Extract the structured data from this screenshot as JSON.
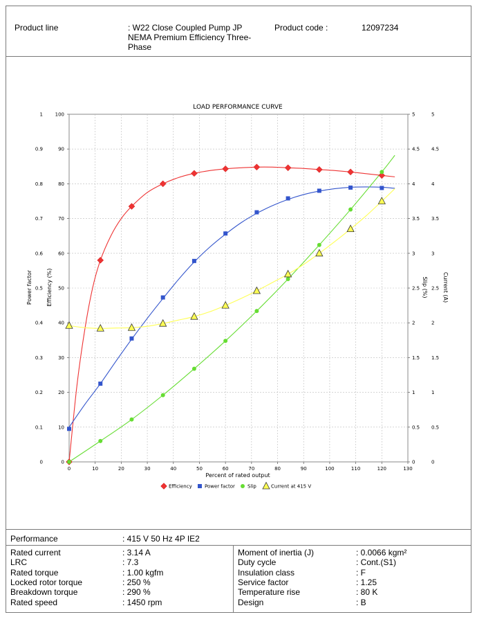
{
  "header": {
    "product_line_label": "Product line",
    "product_line_value": ": W22 Close Coupled Pump JP NEMA Premium Efficiency Three-Phase",
    "product_code_label": "Product code :",
    "product_code_value": "12097234"
  },
  "chart_data": {
    "type": "line",
    "title": "LOAD PERFORMANCE CURVE",
    "xlabel": "Percent of rated output",
    "xlim": [
      0,
      130
    ],
    "x_ticks": [
      "0",
      "10",
      "20",
      "30",
      "40",
      "50",
      "60",
      "70",
      "80",
      "90",
      "100",
      "110",
      "120",
      "130"
    ],
    "axes": {
      "power_factor": {
        "label": "Power factor",
        "lim": [
          0,
          1
        ],
        "ticks": [
          "0",
          "0.1",
          "0.2",
          "0.3",
          "0.4",
          "0.5",
          "0.6",
          "0.7",
          "0.8",
          "0.9",
          "1"
        ]
      },
      "efficiency": {
        "label": "Efficiency (%)",
        "lim": [
          0,
          100
        ],
        "ticks": [
          "0",
          "10",
          "20",
          "30",
          "40",
          "50",
          "60",
          "70",
          "80",
          "90",
          "100"
        ]
      },
      "slip": {
        "label": "Slip (%)",
        "lim": [
          0,
          5
        ],
        "ticks": [
          "0",
          "0.5",
          "1",
          "1.5",
          "2",
          "2.5",
          "3",
          "3.5",
          "4",
          "4.5",
          "5"
        ]
      },
      "current": {
        "label": "Current (A)",
        "lim": [
          0,
          5
        ],
        "ticks": [
          "0",
          "0.5",
          "1",
          "1.5",
          "2",
          "2.5",
          "3",
          "3.5",
          "4",
          "4.5",
          "5"
        ]
      }
    },
    "grid": true,
    "legend_position": "bottom",
    "series": [
      {
        "name": "Efficiency",
        "axis": "efficiency",
        "color": "#ee3333",
        "marker": "diamond",
        "x": [
          0,
          12,
          24,
          36,
          48,
          60,
          72,
          84,
          96,
          108,
          120
        ],
        "y": [
          0,
          58,
          73.5,
          80,
          83,
          84.3,
          84.8,
          84.6,
          84.1,
          83.4,
          82.4
        ],
        "curve_x": [
          0,
          3,
          6,
          9,
          12,
          16,
          20,
          24,
          30,
          36,
          42,
          48,
          54,
          60,
          66,
          72,
          78,
          84,
          90,
          96,
          102,
          108,
          114,
          120,
          125
        ],
        "curve_y": [
          0,
          22,
          38,
          50,
          58,
          65,
          70,
          73.5,
          77.5,
          80,
          81.8,
          83,
          83.8,
          84.3,
          84.6,
          84.8,
          84.8,
          84.6,
          84.4,
          84.1,
          83.8,
          83.4,
          82.9,
          82.4,
          82
        ]
      },
      {
        "name": "Power factor",
        "axis": "power_factor",
        "color": "#3355cc",
        "marker": "square",
        "x": [
          0,
          12,
          24,
          36,
          48,
          60,
          72,
          84,
          96,
          108,
          120
        ],
        "y": [
          0.095,
          0.225,
          0.355,
          0.473,
          0.578,
          0.657,
          0.718,
          0.758,
          0.78,
          0.789,
          0.788
        ],
        "curve_x": [
          0,
          6,
          12,
          18,
          24,
          30,
          36,
          42,
          48,
          54,
          60,
          66,
          72,
          78,
          84,
          90,
          96,
          102,
          108,
          114,
          120,
          125
        ],
        "curve_y": [
          0.1,
          0.165,
          0.225,
          0.29,
          0.353,
          0.413,
          0.47,
          0.525,
          0.575,
          0.618,
          0.655,
          0.688,
          0.715,
          0.737,
          0.755,
          0.769,
          0.779,
          0.786,
          0.79,
          0.791,
          0.79,
          0.787
        ]
      },
      {
        "name": "Slip",
        "axis": "slip",
        "color": "#66dd33",
        "marker": "circle",
        "x": [
          0,
          12,
          24,
          36,
          48,
          60,
          72,
          84,
          96,
          108,
          120
        ],
        "y": [
          0,
          0.3,
          0.61,
          0.96,
          1.34,
          1.74,
          2.17,
          2.63,
          3.12,
          3.63,
          4.17
        ],
        "curve_x": [
          0,
          12,
          24,
          36,
          48,
          60,
          72,
          84,
          96,
          108,
          120,
          125
        ],
        "curve_y": [
          0,
          0.3,
          0.61,
          0.96,
          1.34,
          1.74,
          2.17,
          2.63,
          3.12,
          3.63,
          4.17,
          4.41
        ]
      },
      {
        "name": "Current at 415 V",
        "axis": "current",
        "color": "#ffff55",
        "marker": "triangle",
        "x": [
          0,
          12,
          24,
          36,
          48,
          60,
          72,
          84,
          96,
          108,
          120
        ],
        "y": [
          1.96,
          1.92,
          1.93,
          1.99,
          2.09,
          2.25,
          2.46,
          2.7,
          3.0,
          3.35,
          3.75
        ],
        "curve_x": [
          0,
          6,
          12,
          18,
          24,
          30,
          36,
          42,
          48,
          54,
          60,
          66,
          72,
          78,
          84,
          90,
          96,
          102,
          108,
          114,
          120,
          125
        ],
        "curve_y": [
          1.96,
          1.93,
          1.92,
          1.925,
          1.93,
          1.95,
          1.99,
          2.04,
          2.09,
          2.16,
          2.25,
          2.35,
          2.46,
          2.58,
          2.7,
          2.84,
          3.0,
          3.17,
          3.35,
          3.54,
          3.75,
          3.93
        ]
      }
    ]
  },
  "performance": {
    "label": "Performance",
    "value": ": 415 V 50 Hz 4P IE2"
  },
  "specs_left": [
    {
      "label": "Rated current",
      "value": ": 3.14 A"
    },
    {
      "label": "LRC",
      "value": ": 7.3"
    },
    {
      "label": "Rated torque",
      "value": ": 1.00 kgfm"
    },
    {
      "label": "Locked rotor torque",
      "value": ": 250 %"
    },
    {
      "label": "Breakdown torque",
      "value": ": 290 %"
    },
    {
      "label": "Rated speed",
      "value": ": 1450 rpm"
    }
  ],
  "specs_right": [
    {
      "label": "Moment of inertia (J)",
      "value": ": 0.0066 kgm²"
    },
    {
      "label": "Duty cycle",
      "value": ": Cont.(S1)"
    },
    {
      "label": "Insulation class",
      "value": ": F"
    },
    {
      "label": "Service factor",
      "value": ": 1.25"
    },
    {
      "label": "Temperature rise",
      "value": ": 80 K"
    },
    {
      "label": "Design",
      "value": ": B"
    }
  ]
}
